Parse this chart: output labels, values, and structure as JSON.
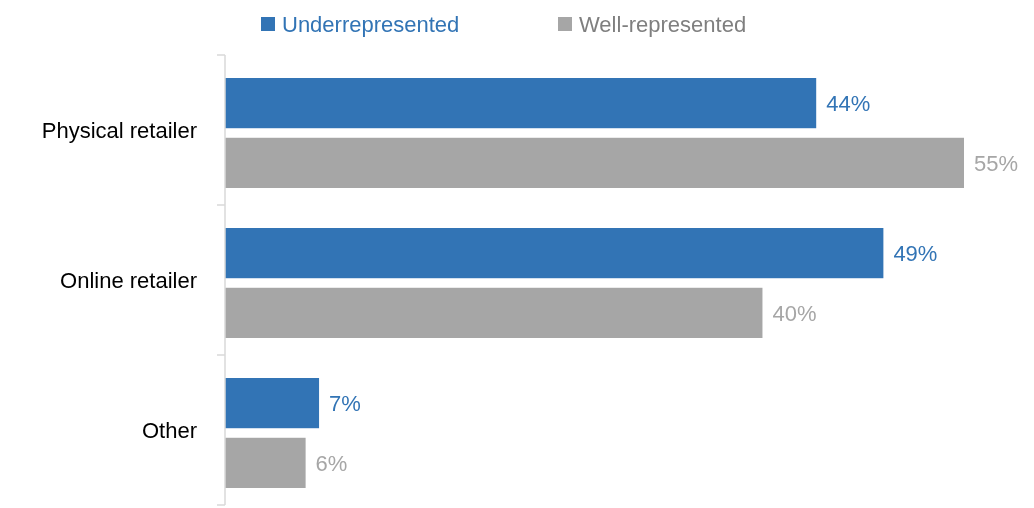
{
  "chart_data": {
    "type": "bar",
    "orientation": "horizontal",
    "categories": [
      "Physical retailer",
      "Online retailer",
      "Other"
    ],
    "series": [
      {
        "name": "Underrepresented",
        "color": "#3274b5",
        "values": [
          44,
          49,
          7
        ],
        "value_labels": [
          "44%",
          "49%",
          "7%"
        ]
      },
      {
        "name": "Well-represented",
        "color": "#a6a6a6",
        "values": [
          55,
          40,
          6
        ],
        "value_labels": [
          "55%",
          "40%",
          "6%"
        ]
      }
    ],
    "legend": "top"
  }
}
